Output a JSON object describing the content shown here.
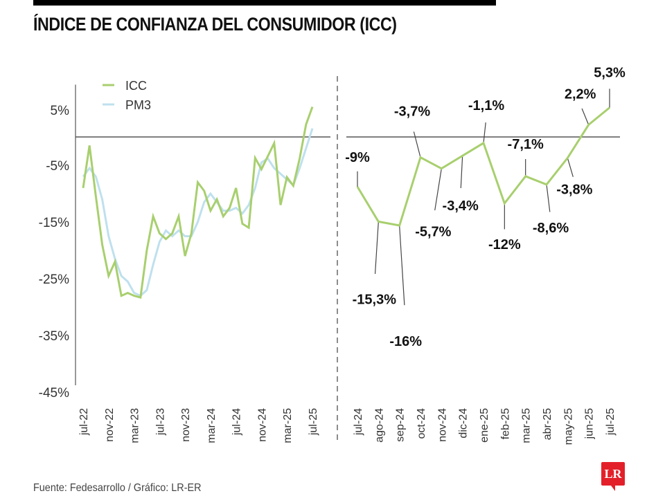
{
  "title": "ÍNDICE DE CONFIANZA DEL CONSUMIDOR (ICC)",
  "source": "Fuente: Fedesarrollo / Gráfico: LR-ER",
  "logo": "LR",
  "colors": {
    "icc": "#a8cf6e",
    "pm3": "#bfe0ee",
    "axis": "#555555",
    "brand": "#e3202a"
  },
  "chart_data": [
    {
      "type": "line",
      "title": "",
      "legend": [
        {
          "name": "ICC",
          "color": "#a8cf6e"
        },
        {
          "name": "PM3",
          "color": "#bfe0ee"
        }
      ],
      "legend_position": "top-left",
      "ylim": [
        -45,
        8
      ],
      "yticks": [
        5,
        -5,
        -15,
        -25,
        -35,
        -45
      ],
      "ytick_labels": [
        "5%",
        "-5%",
        "-15%",
        "-25%",
        "-35%",
        "-45%"
      ],
      "x_tick_labels": [
        "jul-22",
        "nov-22",
        "mar-23",
        "jul-23",
        "nov-23",
        "mar-24",
        "jul-24",
        "nov-24",
        "mar-25",
        "jul-25"
      ],
      "x_tick_every": 4,
      "x": [
        "jul-22",
        "ago-22",
        "sep-22",
        "oct-22",
        "nov-22",
        "dic-22",
        "ene-23",
        "feb-23",
        "mar-23",
        "abr-23",
        "may-23",
        "jun-23",
        "jul-23",
        "ago-23",
        "sep-23",
        "oct-23",
        "nov-23",
        "dic-23",
        "ene-24",
        "feb-24",
        "mar-24",
        "abr-24",
        "may-24",
        "jun-24",
        "jul-24",
        "ago-24",
        "sep-24",
        "oct-24",
        "nov-24",
        "dic-24",
        "ene-25",
        "feb-25",
        "mar-25",
        "abr-25",
        "may-25",
        "jun-25",
        "jul-25"
      ],
      "series": [
        {
          "name": "ICC",
          "values": [
            -9,
            -1.5,
            -10.5,
            -19,
            -24.5,
            -22,
            -28,
            -27.5,
            -28,
            -28.3,
            -20,
            -14,
            -17,
            -18,
            -17,
            -14,
            -21,
            -17,
            -8,
            -9.5,
            -13,
            -11,
            -14,
            -12.5,
            -9,
            -15.3,
            -16,
            -3.7,
            -5.7,
            -3.4,
            -1.1,
            -12,
            -7.1,
            -8.6,
            -3.8,
            2.2,
            5.3
          ]
        },
        {
          "name": "PM3",
          "values": [
            -7,
            -5.5,
            -7,
            -11,
            -17.5,
            -21.5,
            -24.5,
            -25.5,
            -27.5,
            -28,
            -27,
            -22.5,
            -18.5,
            -16.5,
            -17.5,
            -16.5,
            -17.5,
            -17.5,
            -15,
            -11.5,
            -10,
            -11.5,
            -13,
            -13,
            -12.5,
            -13.5,
            -12,
            -9,
            -4.5,
            -3.8,
            -5.5,
            -6.5,
            -7.5,
            -8.5,
            -5.5,
            -2,
            1.5
          ]
        }
      ]
    },
    {
      "type": "line",
      "title": "",
      "x": [
        "jul-24",
        "ago-24",
        "sep-24",
        "oct-24",
        "nov-24",
        "dic-24",
        "ene-25",
        "feb-25",
        "mar-25",
        "abr-25",
        "may-25",
        "jun-25",
        "jul-25"
      ],
      "series": [
        {
          "name": "ICC",
          "values": [
            -9,
            -15.3,
            -16,
            -3.7,
            -5.7,
            -3.4,
            -1.1,
            -12,
            -7.1,
            -8.6,
            -3.8,
            2.2,
            5.3
          ]
        }
      ],
      "data_labels": [
        "-9%",
        "-15,3%",
        "-16%",
        "-3,7%",
        "-5,7%",
        "-3,4%",
        "-1,1%",
        "-12%",
        "-7,1%",
        "-8,6%",
        "-3,8%",
        "2,2%",
        "5,3%"
      ],
      "baseline": 0
    }
  ]
}
